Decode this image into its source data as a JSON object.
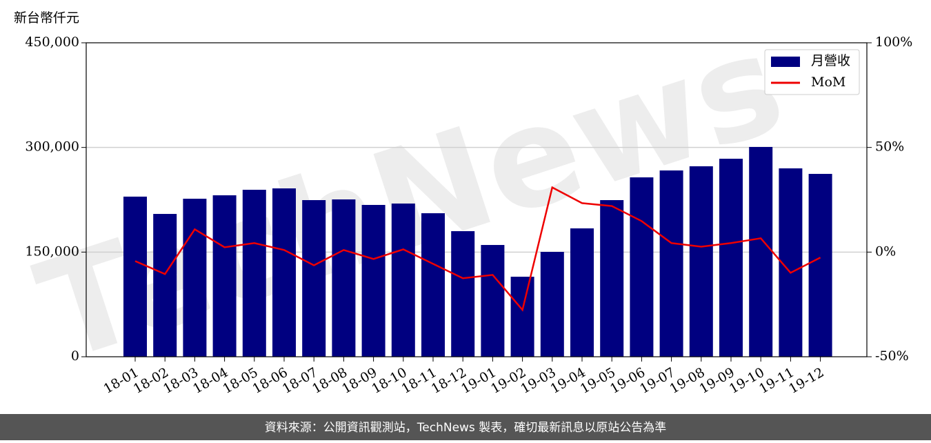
{
  "chart_data": {
    "type": "bar-line",
    "y_label": "新台幣仟元",
    "categories": [
      "18-01",
      "18-02",
      "18-03",
      "18-04",
      "18-05",
      "18-06",
      "18-07",
      "18-08",
      "18-09",
      "18-10",
      "18-11",
      "18-12",
      "19-01",
      "19-02",
      "19-03",
      "19-04",
      "19-05",
      "19-06",
      "19-07",
      "19-08",
      "19-09",
      "19-10",
      "19-11",
      "19-12"
    ],
    "series": [
      {
        "name": "月營收",
        "type": "bar",
        "color": "#000080",
        "values": [
          229500,
          204700,
          226500,
          231400,
          239300,
          241300,
          224500,
          225500,
          217600,
          219600,
          205700,
          180000,
          160200,
          114700,
          150300,
          184000,
          224500,
          257100,
          267000,
          273000,
          283800,
          300700,
          270000,
          262100
        ]
      },
      {
        "name": "MoM",
        "type": "line",
        "color": "#ee0000",
        "axis": "y2",
        "values": [
          -4.3,
          -10.5,
          10.9,
          2.3,
          4.3,
          1.0,
          -6.3,
          1.0,
          -3.3,
          1.3,
          -5.6,
          -12.5,
          -10.9,
          -27.6,
          30.9,
          23.4,
          22.0,
          14.8,
          4.3,
          2.6,
          4.3,
          6.6,
          -9.9,
          -2.6
        ]
      }
    ],
    "ylim": [
      0,
      450000
    ],
    "yticks": [
      0,
      {
        "value": 150000,
        "label": "150,000"
      },
      {
        "value": 300000,
        "label": "300,000"
      },
      {
        "value": 450000,
        "label": "450,000"
      }
    ],
    "y2lim": [
      -50,
      100
    ],
    "y2ticks": [
      {
        "value": -50,
        "label": "-50%"
      },
      {
        "value": 0,
        "label": "0%"
      },
      {
        "value": 50,
        "label": "50%"
      },
      {
        "value": 100,
        "label": "100%"
      }
    ],
    "grid": true,
    "legend": "upper right",
    "watermark": "TechNews",
    "footer": "資料來源：公開資訊觀測站，TechNews 製表，確切最新訊息以原站公告為準"
  }
}
